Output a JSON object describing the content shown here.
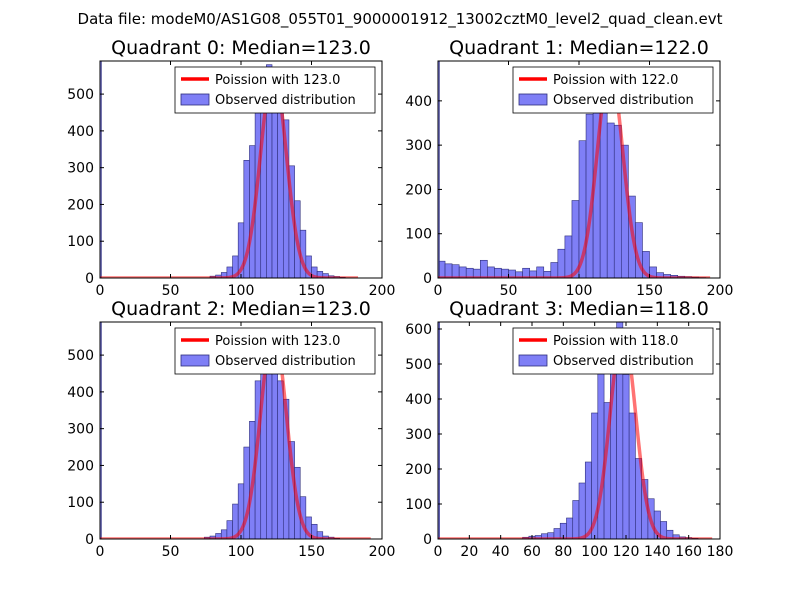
{
  "figure": {
    "suptitle": "Data file: modeM0/AS1G08_055T01_9000001912_13002cztM0_level2_quad_clean.evt"
  },
  "chart_data": [
    {
      "type": "bar",
      "title": "Quadrant 0: Median=123.0",
      "xlim": [
        0,
        200
      ],
      "ylim": [
        0,
        590
      ],
      "xticks": [
        0,
        50,
        100,
        150,
        200
      ],
      "yticks": [
        0,
        100,
        200,
        300,
        400,
        500
      ],
      "legend": {
        "location": "top-right",
        "entries": [
          "Poission with 123.0",
          "Observed distribution"
        ]
      },
      "curve": {
        "name": "Poission with 123.0",
        "lambda": 123.0,
        "peak": 560,
        "sigma_scale": 0.82,
        "x_range": [
          0,
          183
        ]
      },
      "histogram": {
        "name": "Observed distribution",
        "bin_edges": [
          0,
          1,
          78,
          82,
          86,
          90,
          94,
          98,
          102,
          106,
          110,
          114,
          118,
          122,
          126,
          130,
          134,
          138,
          142,
          146,
          150,
          154,
          158,
          162,
          166,
          170,
          174
        ],
        "counts": [
          620,
          0,
          5,
          8,
          15,
          30,
          60,
          150,
          320,
          360,
          470,
          485,
          580,
          565,
          490,
          430,
          305,
          210,
          130,
          60,
          30,
          18,
          12,
          6,
          4,
          2
        ]
      }
    },
    {
      "type": "bar",
      "title": "Quadrant 1: Median=122.0",
      "xlim": [
        0,
        200
      ],
      "ylim": [
        0,
        490
      ],
      "xticks": [
        0,
        50,
        100,
        150,
        200
      ],
      "yticks": [
        0,
        100,
        200,
        300,
        400
      ],
      "legend": {
        "location": "top-right",
        "entries": [
          "Poission with 122.0",
          "Observed distribution"
        ]
      },
      "curve": {
        "name": "Poission with 122.0",
        "lambda": 122.0,
        "peak": 470,
        "sigma_scale": 0.82,
        "x_range": [
          0,
          193
        ]
      },
      "histogram": {
        "name": "Observed distribution",
        "bin_edges": [
          0,
          1,
          5,
          10,
          15,
          20,
          25,
          30,
          35,
          40,
          45,
          50,
          55,
          60,
          65,
          70,
          75,
          80,
          85,
          90,
          95,
          100,
          105,
          110,
          115,
          120,
          125,
          130,
          135,
          140,
          145,
          150,
          155,
          160,
          165,
          170,
          175,
          180,
          185,
          190
        ],
        "counts": [
          600,
          38,
          32,
          30,
          25,
          22,
          20,
          40,
          25,
          22,
          20,
          18,
          14,
          22,
          16,
          25,
          15,
          35,
          65,
          95,
          175,
          310,
          370,
          460,
          440,
          350,
          345,
          300,
          185,
          125,
          60,
          25,
          12,
          8,
          6,
          4,
          3,
          2,
          1
        ]
      }
    },
    {
      "type": "bar",
      "title": "Quadrant 2: Median=123.0",
      "xlim": [
        0,
        200
      ],
      "ylim": [
        0,
        590
      ],
      "xticks": [
        0,
        50,
        100,
        150,
        200
      ],
      "yticks": [
        0,
        100,
        200,
        300,
        400,
        500
      ],
      "legend": {
        "location": "top-right",
        "entries": [
          "Poission with 123.0",
          "Observed distribution"
        ]
      },
      "curve": {
        "name": "Poission with 123.0",
        "lambda": 123.0,
        "peak": 565,
        "sigma_scale": 0.82,
        "x_range": [
          0,
          192
        ]
      },
      "histogram": {
        "name": "Observed distribution",
        "bin_edges": [
          0,
          1,
          74,
          78,
          82,
          86,
          90,
          94,
          98,
          102,
          106,
          110,
          114,
          118,
          122,
          126,
          130,
          134,
          138,
          142,
          146,
          150,
          154,
          158,
          162,
          166,
          170
        ],
        "counts": [
          630,
          0,
          5,
          8,
          15,
          25,
          50,
          95,
          150,
          250,
          320,
          430,
          540,
          570,
          500,
          430,
          380,
          265,
          195,
          115,
          60,
          40,
          20,
          8,
          5,
          2
        ]
      }
    },
    {
      "type": "bar",
      "title": "Quadrant 3: Median=118.0",
      "xlim": [
        0,
        180
      ],
      "ylim": [
        0,
        620
      ],
      "xticks": [
        0,
        20,
        40,
        60,
        80,
        100,
        120,
        140,
        160,
        180
      ],
      "yticks": [
        0,
        100,
        200,
        300,
        400,
        500,
        600
      ],
      "legend": {
        "location": "top-right",
        "entries": [
          "Poission with 118.0",
          "Observed distribution"
        ]
      },
      "curve": {
        "name": "Poission with 118.0",
        "lambda": 118.0,
        "peak": 590,
        "sigma_scale": 0.75,
        "x_range": [
          0,
          175
        ]
      },
      "histogram": {
        "name": "Observed distribution",
        "bin_edges": [
          0,
          1,
          54,
          58,
          62,
          66,
          70,
          74,
          78,
          82,
          86,
          90,
          94,
          98,
          102,
          106,
          110,
          114,
          118,
          122,
          126,
          130,
          134,
          138,
          142,
          146,
          150,
          154,
          158,
          162,
          166
        ],
        "counts": [
          620,
          0,
          5,
          8,
          10,
          15,
          18,
          30,
          45,
          60,
          110,
          160,
          220,
          360,
          520,
          390,
          490,
          620,
          470,
          360,
          230,
          170,
          115,
          80,
          50,
          25,
          12,
          6,
          4,
          2
        ]
      }
    }
  ]
}
